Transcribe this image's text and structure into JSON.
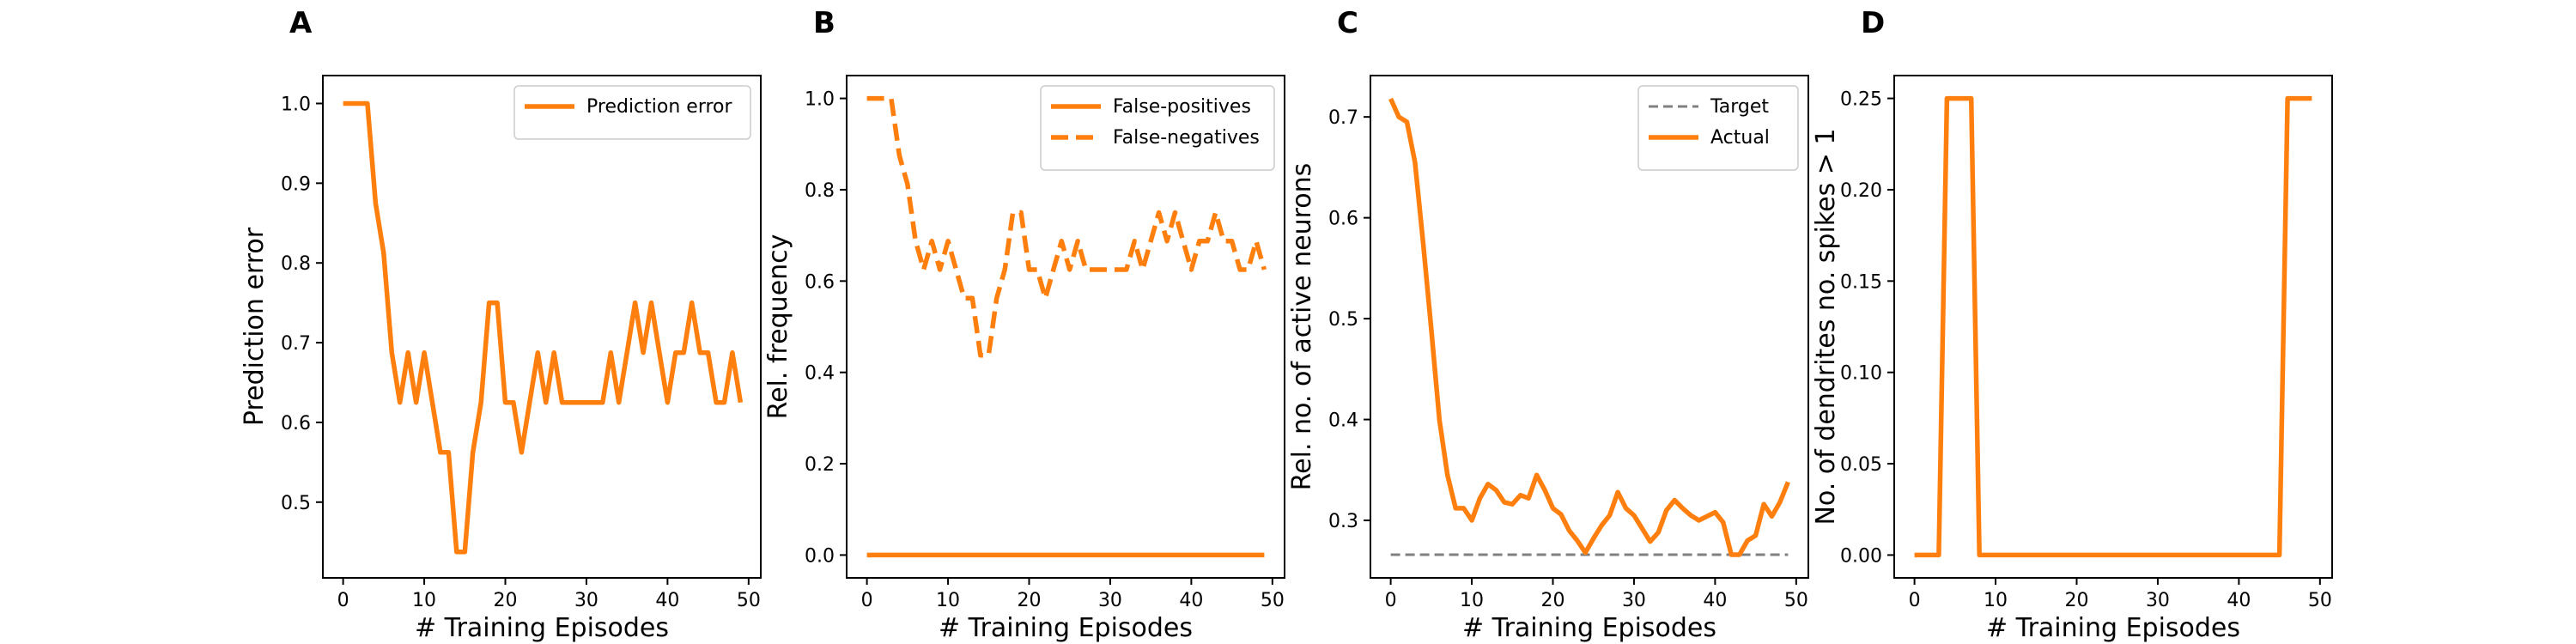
{
  "chart_data": [
    {
      "type": "line",
      "panel_label": "A",
      "xlabel": "# Training Episodes",
      "ylabel": "Prediction error",
      "xlim": [
        -2.5,
        51.5
      ],
      "ylim": [
        0.405,
        1.035
      ],
      "xticks": [
        0,
        10,
        20,
        30,
        40,
        50
      ],
      "yticks": [
        0.5,
        0.6,
        0.7,
        0.8,
        0.9,
        1.0
      ],
      "ytick_labels": [
        "0.5",
        "0.6",
        "0.7",
        "0.8",
        "0.9",
        "1.0"
      ],
      "legend_position": "top-right",
      "x": [
        0,
        1,
        2,
        3,
        4,
        5,
        6,
        7,
        8,
        9,
        10,
        11,
        12,
        13,
        14,
        15,
        16,
        17,
        18,
        19,
        20,
        21,
        22,
        23,
        24,
        25,
        26,
        27,
        28,
        29,
        30,
        31,
        32,
        33,
        34,
        35,
        36,
        37,
        38,
        39,
        40,
        41,
        42,
        43,
        44,
        45,
        46,
        47,
        48,
        49
      ],
      "series": [
        {
          "name": "Prediction error",
          "color": "#ff7f0e",
          "style": "solid",
          "values": [
            1.0,
            1.0,
            1.0,
            1.0,
            0.875,
            0.8125,
            0.6875,
            0.625,
            0.6875,
            0.625,
            0.6875,
            0.625,
            0.5625,
            0.5625,
            0.4375,
            0.4375,
            0.5625,
            0.625,
            0.75,
            0.75,
            0.625,
            0.625,
            0.5625,
            0.625,
            0.6875,
            0.625,
            0.6875,
            0.625,
            0.625,
            0.625,
            0.625,
            0.625,
            0.625,
            0.6875,
            0.625,
            0.6875,
            0.75,
            0.6875,
            0.75,
            0.6875,
            0.625,
            0.6875,
            0.6875,
            0.75,
            0.6875,
            0.6875,
            0.625,
            0.625,
            0.6875,
            0.625
          ]
        }
      ]
    },
    {
      "type": "line",
      "panel_label": "B",
      "xlabel": "# Training Episodes",
      "ylabel": "Rel. frequency",
      "xlim": [
        -2.5,
        51.5
      ],
      "ylim": [
        -0.05,
        1.05
      ],
      "xticks": [
        0,
        10,
        20,
        30,
        40,
        50
      ],
      "yticks": [
        0.0,
        0.2,
        0.4,
        0.6,
        0.8,
        1.0
      ],
      "ytick_labels": [
        "0.0",
        "0.2",
        "0.4",
        "0.6",
        "0.8",
        "1.0"
      ],
      "legend_position": "top-right",
      "x": [
        0,
        1,
        2,
        3,
        4,
        5,
        6,
        7,
        8,
        9,
        10,
        11,
        12,
        13,
        14,
        15,
        16,
        17,
        18,
        19,
        20,
        21,
        22,
        23,
        24,
        25,
        26,
        27,
        28,
        29,
        30,
        31,
        32,
        33,
        34,
        35,
        36,
        37,
        38,
        39,
        40,
        41,
        42,
        43,
        44,
        45,
        46,
        47,
        48,
        49
      ],
      "series": [
        {
          "name": "False-positives",
          "color": "#ff7f0e",
          "style": "solid",
          "values": [
            0,
            0,
            0,
            0,
            0,
            0,
            0,
            0,
            0,
            0,
            0,
            0,
            0,
            0,
            0,
            0,
            0,
            0,
            0,
            0,
            0,
            0,
            0,
            0,
            0,
            0,
            0,
            0,
            0,
            0,
            0,
            0,
            0,
            0,
            0,
            0,
            0,
            0,
            0,
            0,
            0,
            0,
            0,
            0,
            0,
            0,
            0,
            0,
            0,
            0
          ]
        },
        {
          "name": "False-negatives",
          "color": "#ff7f0e",
          "style": "dashed",
          "values": [
            1.0,
            1.0,
            1.0,
            1.0,
            0.875,
            0.8125,
            0.6875,
            0.625,
            0.6875,
            0.625,
            0.6875,
            0.625,
            0.5625,
            0.5625,
            0.4375,
            0.4375,
            0.5625,
            0.625,
            0.75,
            0.75,
            0.625,
            0.625,
            0.5625,
            0.625,
            0.6875,
            0.625,
            0.6875,
            0.625,
            0.625,
            0.625,
            0.625,
            0.625,
            0.625,
            0.6875,
            0.625,
            0.6875,
            0.75,
            0.6875,
            0.75,
            0.6875,
            0.625,
            0.6875,
            0.6875,
            0.75,
            0.6875,
            0.6875,
            0.625,
            0.625,
            0.6875,
            0.625
          ]
        }
      ]
    },
    {
      "type": "line",
      "panel_label": "C",
      "xlabel": "# Training Episodes",
      "ylabel": "Rel. no. of active neurons",
      "xlim": [
        -2.5,
        51.5
      ],
      "ylim": [
        0.243,
        0.741
      ],
      "xticks": [
        0,
        10,
        20,
        30,
        40,
        50
      ],
      "yticks": [
        0.3,
        0.4,
        0.5,
        0.6,
        0.7
      ],
      "ytick_labels": [
        "0.3",
        "0.4",
        "0.5",
        "0.6",
        "0.7"
      ],
      "legend_position": "top-right",
      "x": [
        0,
        1,
        2,
        3,
        4,
        5,
        6,
        7,
        8,
        9,
        10,
        11,
        12,
        13,
        14,
        15,
        16,
        17,
        18,
        19,
        20,
        21,
        22,
        23,
        24,
        25,
        26,
        27,
        28,
        29,
        30,
        31,
        32,
        33,
        34,
        35,
        36,
        37,
        38,
        39,
        40,
        41,
        42,
        43,
        44,
        45,
        46,
        47,
        48,
        49
      ],
      "series": [
        {
          "name": "Target",
          "color": "#808080",
          "style": "dashed",
          "values": [
            0.266,
            0.266,
            0.266,
            0.266,
            0.266,
            0.266,
            0.266,
            0.266,
            0.266,
            0.266,
            0.266,
            0.266,
            0.266,
            0.266,
            0.266,
            0.266,
            0.266,
            0.266,
            0.266,
            0.266,
            0.266,
            0.266,
            0.266,
            0.266,
            0.266,
            0.266,
            0.266,
            0.266,
            0.266,
            0.266,
            0.266,
            0.266,
            0.266,
            0.266,
            0.266,
            0.266,
            0.266,
            0.266,
            0.266,
            0.266,
            0.266,
            0.266,
            0.266,
            0.266,
            0.266,
            0.266,
            0.266,
            0.266,
            0.266,
            0.266
          ]
        },
        {
          "name": "Actual",
          "color": "#ff7f0e",
          "style": "solid",
          "values": [
            0.718,
            0.7,
            0.695,
            0.655,
            0.575,
            0.49,
            0.4,
            0.345,
            0.312,
            0.312,
            0.3,
            0.322,
            0.336,
            0.33,
            0.318,
            0.316,
            0.325,
            0.322,
            0.345,
            0.33,
            0.312,
            0.306,
            0.29,
            0.28,
            0.268,
            0.282,
            0.295,
            0.305,
            0.328,
            0.312,
            0.305,
            0.292,
            0.279,
            0.288,
            0.31,
            0.32,
            0.312,
            0.305,
            0.3,
            0.304,
            0.308,
            0.298,
            0.266,
            0.266,
            0.28,
            0.285,
            0.316,
            0.304,
            0.318,
            0.338
          ]
        }
      ]
    },
    {
      "type": "line",
      "panel_label": "D",
      "xlabel": "# Training Episodes",
      "ylabel": "No. of dendrites no. spikes > 1",
      "xlim": [
        -2.5,
        51.5
      ],
      "ylim": [
        -0.0125,
        0.2625
      ],
      "xticks": [
        0,
        10,
        20,
        30,
        40,
        50
      ],
      "yticks": [
        0.0,
        0.05,
        0.1,
        0.15,
        0.2,
        0.25
      ],
      "ytick_labels": [
        "0.00",
        "0.05",
        "0.10",
        "0.15",
        "0.20",
        "0.25"
      ],
      "x": [
        0,
        1,
        2,
        3,
        4,
        5,
        6,
        7,
        8,
        9,
        10,
        11,
        12,
        13,
        14,
        15,
        16,
        17,
        18,
        19,
        20,
        21,
        22,
        23,
        24,
        25,
        26,
        27,
        28,
        29,
        30,
        31,
        32,
        33,
        34,
        35,
        36,
        37,
        38,
        39,
        40,
        41,
        42,
        43,
        44,
        45,
        46,
        47,
        48,
        49
      ],
      "series": [
        {
          "color": "#ff7f0e",
          "style": "solid",
          "values": [
            0,
            0,
            0,
            0,
            0.25,
            0.25,
            0.25,
            0.25,
            0,
            0,
            0,
            0,
            0,
            0,
            0,
            0,
            0,
            0,
            0,
            0,
            0,
            0,
            0,
            0,
            0,
            0,
            0,
            0,
            0,
            0,
            0,
            0,
            0,
            0,
            0,
            0,
            0,
            0,
            0,
            0,
            0,
            0,
            0,
            0,
            0,
            0,
            0.25,
            0.25,
            0.25,
            0.25
          ]
        }
      ]
    }
  ]
}
